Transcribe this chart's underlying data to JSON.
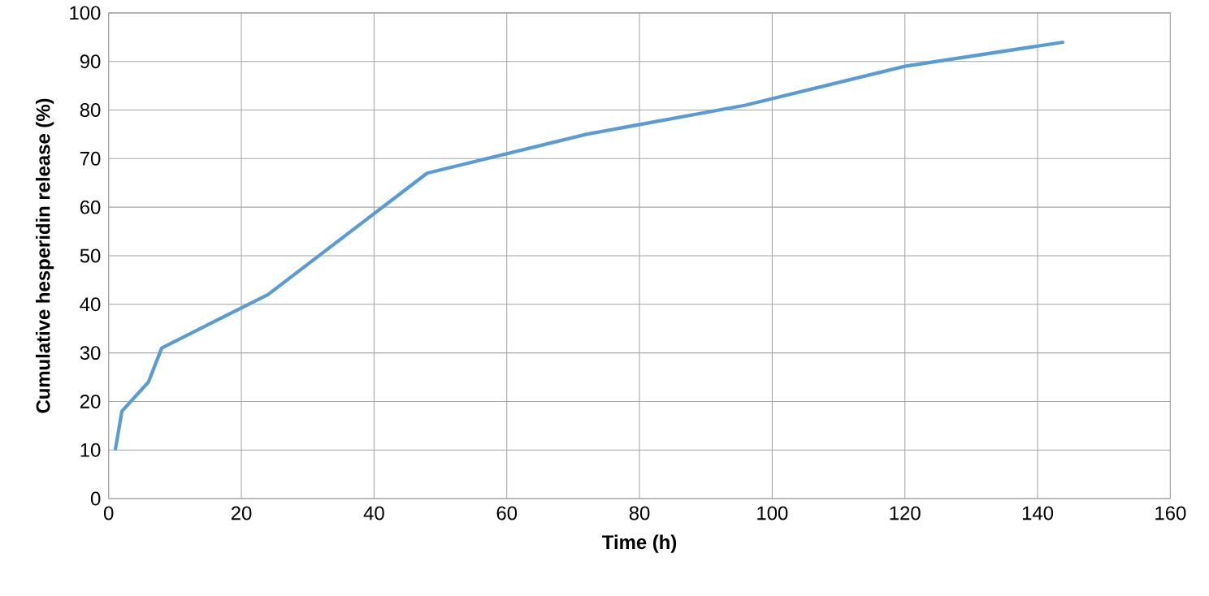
{
  "chart_data": {
    "type": "line",
    "xlabel": "Time (h)",
    "ylabel": "Cumulative hesperidin release (%)",
    "x": [
      1,
      2,
      4,
      6,
      8,
      24,
      48,
      72,
      96,
      120,
      144
    ],
    "values": [
      10,
      18,
      21,
      24,
      31,
      42,
      67,
      75,
      81,
      89,
      94
    ],
    "color": "#5b9bd5",
    "xlim": [
      0,
      160
    ],
    "xticks": [
      0,
      20,
      40,
      60,
      80,
      100,
      120,
      140,
      160
    ],
    "ylim": [
      0,
      100
    ],
    "yticks": [
      0,
      10,
      20,
      30,
      40,
      50,
      60,
      70,
      80,
      90,
      100
    ],
    "grid": true,
    "marker": "none",
    "line_style": "solid"
  }
}
